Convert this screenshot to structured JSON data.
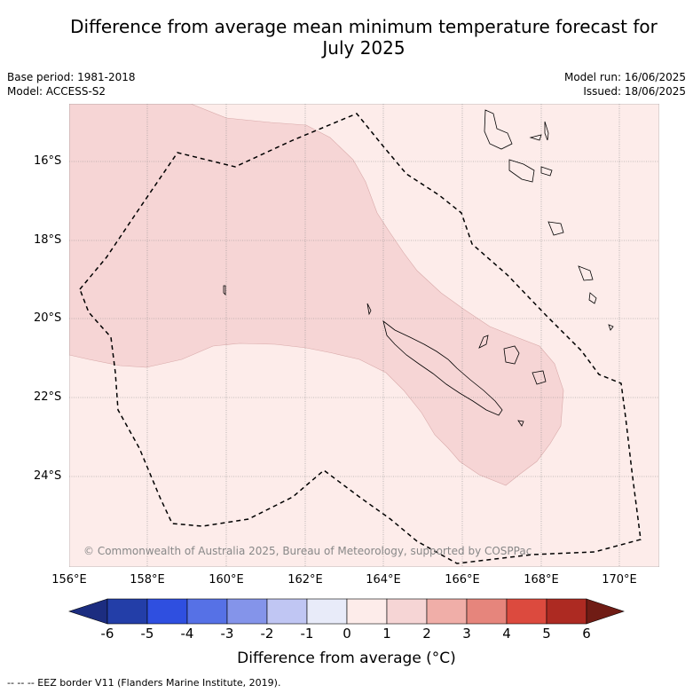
{
  "title_line1": "Difference from average mean minimum temperature forecast for",
  "title_line2": "July 2025",
  "base_period": "Base period: 1981-2018",
  "model": "Model: ACCESS-S2",
  "model_run": "Model run: 16/06/2025",
  "issued": "Issued: 18/06/2025",
  "lat_labels": [
    "16°S",
    "18°S",
    "20°S",
    "22°S",
    "24°S"
  ],
  "lon_labels": [
    "156°E",
    "158°E",
    "160°E",
    "162°E",
    "164°E",
    "166°E",
    "168°E",
    "170°E"
  ],
  "copyright": "© Commonwealth of Australia 2025, Bureau of Meteorology, supported by COSPPac",
  "colorbar": {
    "ticks": [
      "-6",
      "-5",
      "-4",
      "-3",
      "-2",
      "-1",
      "0",
      "1",
      "2",
      "3",
      "4",
      "5",
      "6"
    ],
    "colors": [
      "#233ea8",
      "#2f4fe0",
      "#5671e6",
      "#8494ea",
      "#c0c6f3",
      "#e8ebf9",
      "#fdecea",
      "#f6d5d5",
      "#f0aea8",
      "#e6857c",
      "#dc4a3e",
      "#ad2a22"
    ],
    "extend_low": "#1c2d80",
    "extend_high": "#701c15",
    "label": "Difference from average (°C)"
  },
  "footnote": "-- -- -- EEZ border V11 (Flanders Marine Institute, 2019).",
  "colors": {
    "background_category": "#fdecea",
    "anomaly_1_2_category": "#f6d5d5"
  }
}
